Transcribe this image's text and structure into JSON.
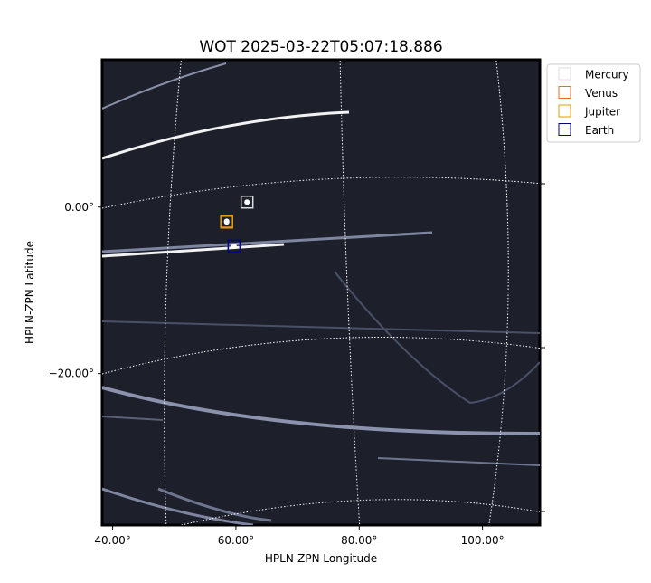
{
  "chart_data": {
    "type": "scatter",
    "title": "WOT 2025-03-22T05:07:18.886",
    "x_label": "HPLN-ZPN Longitude",
    "y_label": "HPLN-ZPN Latitude",
    "xlim": [
      38.3,
      109.3
    ],
    "ylim": [
      -38.2,
      17.7
    ],
    "xticks": [
      {
        "value": 40,
        "label": "40.00°"
      },
      {
        "value": 60,
        "label": "60.00°"
      },
      {
        "value": 80,
        "label": "80.00°"
      },
      {
        "value": 100,
        "label": "100.00°"
      }
    ],
    "yticks": [
      {
        "value": 0,
        "label": "0.00°"
      },
      {
        "value": -20,
        "label": "−20.00°"
      }
    ],
    "legend_position": "upper right outside",
    "series": [
      {
        "name": "Mercury",
        "color": "#dddddd",
        "x": [
          61.8
        ],
        "y": [
          0.6
        ]
      },
      {
        "name": "Venus",
        "color": "#e07030",
        "x": [
          58.5
        ],
        "y": [
          -1.7
        ]
      },
      {
        "name": "Jupiter",
        "color": "#e0a000",
        "x": [
          58.5
        ],
        "y": [
          -1.8
        ]
      },
      {
        "name": "Earth",
        "color": "#00008b",
        "x": [
          59.7
        ],
        "y": [
          -4.7
        ]
      }
    ]
  }
}
